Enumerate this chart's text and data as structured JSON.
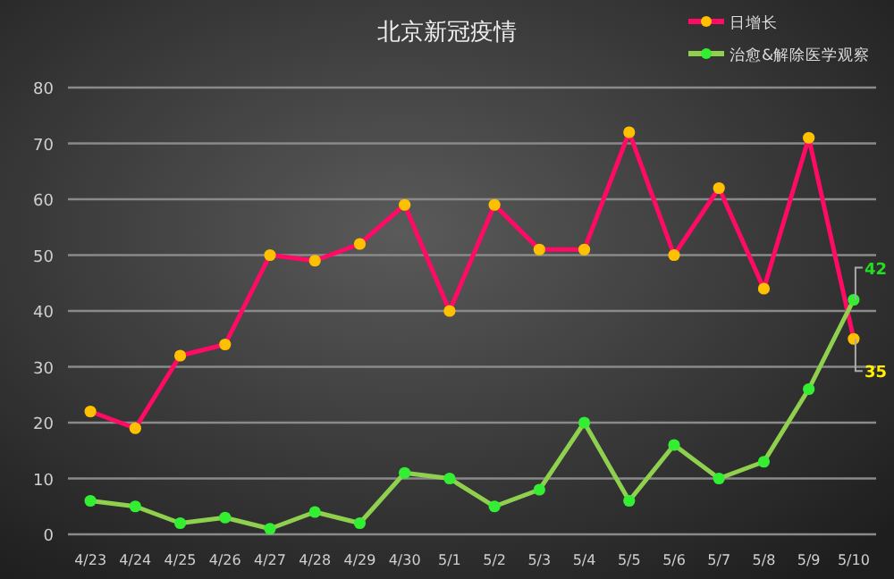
{
  "chart_data": {
    "type": "line",
    "title": "北京新冠疫情",
    "categories": [
      "4/23",
      "4/24",
      "4/25",
      "4/26",
      "4/27",
      "4/28",
      "4/29",
      "4/30",
      "5/1",
      "5/2",
      "5/3",
      "5/4",
      "5/5",
      "5/6",
      "5/7",
      "5/8",
      "5/9",
      "5/10"
    ],
    "series": [
      {
        "name": "日增长",
        "color": "#ff0a64",
        "values": [
          22,
          19,
          32,
          34,
          50,
          49,
          52,
          59,
          40,
          59,
          51,
          51,
          72,
          50,
          62,
          44,
          71,
          35
        ],
        "value_labels": [
          null,
          null,
          null,
          null,
          null,
          null,
          null,
          null,
          null,
          null,
          null,
          null,
          null,
          null,
          null,
          null,
          null,
          "35"
        ]
      },
      {
        "name": "治愈&解除医学观察",
        "color": "#8fd14f",
        "values": [
          6,
          5,
          2,
          3,
          1,
          4,
          2,
          11,
          10,
          5,
          8,
          20,
          6,
          16,
          10,
          13,
          26,
          42
        ],
        "value_labels": [
          null,
          null,
          null,
          null,
          null,
          null,
          null,
          null,
          null,
          null,
          null,
          null,
          null,
          null,
          null,
          null,
          null,
          "42"
        ]
      }
    ],
    "ylim": [
      0,
      80
    ],
    "yticks": [
      0,
      10,
      20,
      30,
      40,
      50,
      60,
      70,
      80
    ],
    "grid": "y",
    "legend": "top right",
    "marker": "circle",
    "line_style": "solid"
  }
}
